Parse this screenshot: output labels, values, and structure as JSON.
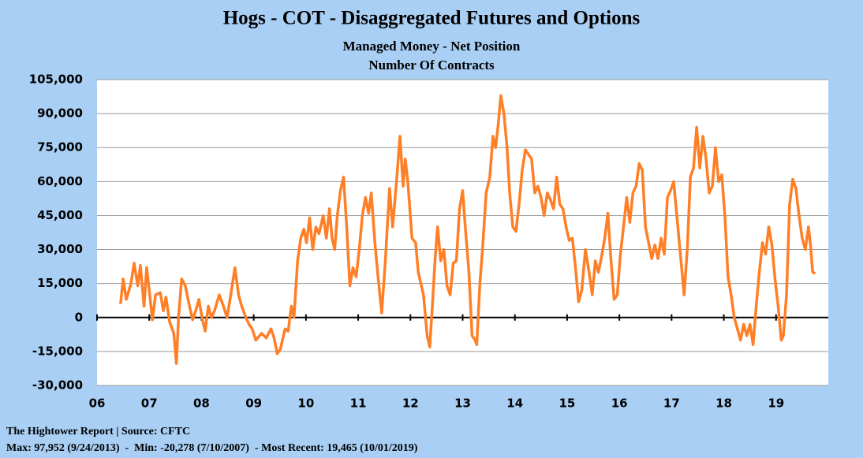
{
  "chart_data": {
    "type": "line",
    "title": "Hogs - COT - Disaggregated Futures and Options",
    "subtitle": "Managed Money - Net Position",
    "y_label": "Number Of Contracts",
    "annotations": [
      "The Hightower Report | Source: CFTC",
      "Max: 97,952 (9/24/2013)  -  Min: -20,278 (7/10/2007)  - Most Recent: 19,465 (10/01/2019)"
    ],
    "xlim": [
      2006,
      2020
    ],
    "xticks": [
      {
        "value": 2006,
        "label": "06"
      },
      {
        "value": 2007,
        "label": "07"
      },
      {
        "value": 2008,
        "label": "08"
      },
      {
        "value": 2009,
        "label": "09"
      },
      {
        "value": 2010,
        "label": "10"
      },
      {
        "value": 2011,
        "label": "11"
      },
      {
        "value": 2012,
        "label": "12"
      },
      {
        "value": 2013,
        "label": "13"
      },
      {
        "value": 2014,
        "label": "14"
      },
      {
        "value": 2015,
        "label": "15"
      },
      {
        "value": 2016,
        "label": "16"
      },
      {
        "value": 2017,
        "label": "17"
      },
      {
        "value": 2018,
        "label": "18"
      },
      {
        "value": 2019,
        "label": "19"
      }
    ],
    "ylim": [
      -30000,
      105000
    ],
    "yticks": [
      {
        "value": -30000,
        "label": "-30,000"
      },
      {
        "value": -15000,
        "label": "-15,000"
      },
      0,
      {
        "value": 15000,
        "label": "15,000"
      },
      {
        "value": 30000,
        "label": "30,000"
      },
      {
        "value": 45000,
        "label": "45,000"
      },
      {
        "value": 60000,
        "label": "60,000"
      },
      {
        "value": 75000,
        "label": "75,000"
      },
      {
        "value": 90000,
        "label": "90,000"
      },
      {
        "value": 105000,
        "label": "105,000"
      }
    ],
    "grid": true,
    "color": "#ff7f27",
    "x": [
      2006.45,
      2006.5,
      2006.56,
      2006.65,
      2006.71,
      2006.78,
      2006.83,
      2006.9,
      2006.95,
      2007.01,
      2007.06,
      2007.12,
      2007.21,
      2007.27,
      2007.32,
      2007.39,
      2007.47,
      2007.52,
      2007.56,
      2007.62,
      2007.69,
      2007.77,
      2007.83,
      2007.89,
      2007.95,
      2008.01,
      2008.07,
      2008.13,
      2008.19,
      2008.25,
      2008.34,
      2008.42,
      2008.49,
      2008.56,
      2008.64,
      2008.71,
      2008.77,
      2008.85,
      2008.91,
      2008.97,
      2009.04,
      2009.15,
      2009.24,
      2009.33,
      2009.39,
      2009.45,
      2009.51,
      2009.6,
      2009.66,
      2009.72,
      2009.77,
      2009.84,
      2009.9,
      2009.96,
      2010.01,
      2010.07,
      2010.13,
      2010.19,
      2010.25,
      2010.33,
      2010.39,
      2010.45,
      2010.5,
      2010.55,
      2010.6,
      2010.66,
      2010.72,
      2010.78,
      2010.84,
      2010.9,
      2010.96,
      2011.02,
      2011.08,
      2011.14,
      2011.2,
      2011.25,
      2011.32,
      2011.38,
      2011.45,
      2011.52,
      2011.6,
      2011.66,
      2011.74,
      2011.8,
      2011.86,
      2011.9,
      2011.95,
      2012.03,
      2012.1,
      2012.15,
      2012.25,
      2012.32,
      2012.37,
      2012.42,
      2012.47,
      2012.52,
      2012.58,
      2012.64,
      2012.7,
      2012.76,
      2012.82,
      2012.88,
      2012.94,
      2013.0,
      2013.05,
      2013.12,
      2013.18,
      2013.24,
      2013.27,
      2013.33,
      2013.38,
      2013.45,
      2013.52,
      2013.58,
      2013.63,
      2013.68,
      2013.73,
      2013.79,
      2013.85,
      2013.9,
      2013.96,
      2014.02,
      2014.08,
      2014.14,
      2014.2,
      2014.26,
      2014.32,
      2014.38,
      2014.44,
      2014.5,
      2014.56,
      2014.62,
      2014.68,
      2014.74,
      2014.8,
      2014.86,
      2014.92,
      2014.98,
      2015.04,
      2015.1,
      2015.16,
      2015.22,
      2015.28,
      2015.35,
      2015.42,
      2015.48,
      2015.54,
      2015.6,
      2015.66,
      2015.72,
      2015.78,
      2015.84,
      2015.9,
      2015.96,
      2016.02,
      2016.08,
      2016.14,
      2016.2,
      2016.26,
      2016.32,
      2016.38,
      2016.44,
      2016.5,
      2016.56,
      2016.62,
      2016.68,
      2016.74,
      2016.8,
      2016.86,
      2016.92,
      2016.98,
      2017.04,
      2017.1,
      2017.18,
      2017.24,
      2017.3,
      2017.36,
      2017.42,
      2017.48,
      2017.54,
      2017.6,
      2017.66,
      2017.72,
      2017.78,
      2017.84,
      2017.9,
      2017.96,
      2018.02,
      2018.08,
      2018.14,
      2018.2,
      2018.26,
      2018.32,
      2018.38,
      2018.44,
      2018.5,
      2018.56,
      2018.62,
      2018.68,
      2018.74,
      2018.8,
      2018.86,
      2018.92,
      2018.98,
      2019.04,
      2019.1,
      2019.14,
      2019.2,
      2019.26,
      2019.32,
      2019.38,
      2019.44,
      2019.5,
      2019.56,
      2019.62,
      2019.66,
      2019.7,
      2019.75
    ],
    "values": [
      6000,
      17000,
      8000,
      15000,
      24000,
      14000,
      23000,
      5000,
      22000,
      10000,
      -1000,
      10000,
      11000,
      3000,
      9000,
      -2000,
      -7000,
      -20278,
      0,
      17000,
      14000,
      5000,
      -1000,
      3000,
      8000,
      0,
      -6000,
      5000,
      0,
      3000,
      10000,
      5000,
      0,
      10000,
      22000,
      10000,
      5000,
      0,
      -3000,
      -5000,
      -10000,
      -7000,
      -9000,
      -5000,
      -9000,
      -16000,
      -14000,
      -5000,
      -6000,
      5000,
      0,
      25000,
      35000,
      39000,
      33000,
      44000,
      30000,
      40000,
      37000,
      45000,
      35000,
      48000,
      35000,
      30000,
      45000,
      56000,
      62000,
      40000,
      14000,
      22000,
      18000,
      30000,
      45000,
      53000,
      46000,
      55000,
      33000,
      18000,
      2000,
      25000,
      57000,
      40000,
      62000,
      80000,
      58000,
      70000,
      60000,
      35000,
      33000,
      20000,
      10000,
      -8000,
      -13000,
      5000,
      25000,
      40000,
      25000,
      30000,
      14000,
      10000,
      24000,
      25000,
      48000,
      56000,
      40000,
      20000,
      -8000,
      -10000,
      -12000,
      15000,
      30000,
      55000,
      62000,
      80000,
      75000,
      85000,
      97952,
      90000,
      75000,
      55000,
      40000,
      38000,
      50000,
      65000,
      74000,
      72000,
      70000,
      55000,
      58000,
      53000,
      45000,
      55000,
      52000,
      48000,
      62000,
      50000,
      48000,
      40000,
      34000,
      35000,
      22000,
      7000,
      12000,
      30000,
      20000,
      10000,
      25000,
      20000,
      27000,
      35000,
      46000,
      25000,
      8000,
      10000,
      28000,
      40000,
      53000,
      42000,
      55000,
      58000,
      68000,
      65000,
      40000,
      33000,
      26000,
      32000,
      26000,
      35000,
      28000,
      53000,
      56000,
      60000,
      45000,
      25000,
      10000,
      30000,
      62000,
      66000,
      84000,
      66000,
      80000,
      70000,
      55000,
      58000,
      75000,
      60000,
      63000,
      45000,
      18000,
      10000,
      0,
      -5000,
      -10000,
      -3000,
      -8000,
      -3000,
      -12000,
      5000,
      20000,
      33000,
      28000,
      40000,
      32000,
      17000,
      5000,
      -10000,
      -8000,
      10000,
      50000,
      61000,
      57000,
      45000,
      35000,
      30000,
      40000,
      32000,
      20000,
      19465
    ]
  }
}
